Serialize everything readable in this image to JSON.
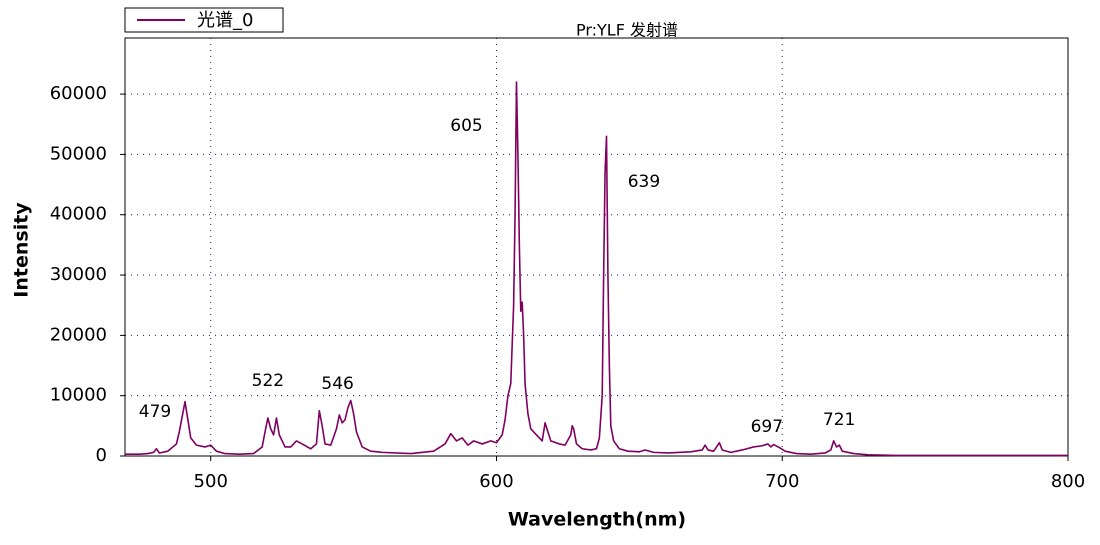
{
  "chart_data": {
    "type": "line",
    "title": "Pr:YLF 发射谱",
    "xlabel": "Wavelength(nm)",
    "ylabel": "Intensity",
    "x": [
      470,
      475,
      478,
      480,
      481,
      482,
      485,
      488,
      489,
      490,
      491,
      492,
      493,
      495,
      498,
      500,
      502,
      505,
      510,
      515,
      518,
      519,
      520,
      521,
      522,
      523,
      524,
      526,
      528,
      530,
      532,
      535,
      537,
      538,
      539,
      540,
      542,
      544,
      545,
      546,
      547,
      548,
      549,
      550,
      551,
      553,
      556,
      560,
      570,
      578,
      582,
      584,
      586,
      588,
      590,
      592,
      595,
      598,
      600,
      602,
      603,
      604,
      605,
      606,
      606.5,
      607,
      607.5,
      608,
      608.5,
      609,
      609.5,
      610,
      611,
      612,
      614,
      616,
      617,
      618,
      619,
      622,
      624,
      626,
      626.5,
      627,
      628,
      630,
      633,
      635,
      636,
      637,
      637.5,
      638,
      638.5,
      639,
      639.5,
      640,
      641,
      643,
      646,
      650,
      652,
      655,
      660,
      668,
      672,
      673,
      674,
      676,
      677,
      678,
      679,
      682,
      686,
      690,
      693,
      695,
      696,
      697,
      699,
      701,
      705,
      710,
      715,
      717,
      718,
      719,
      720,
      721,
      725,
      730,
      740,
      760,
      780,
      800
    ],
    "series": [
      {
        "name": "光谱_0",
        "color": "#800060",
        "values": [
          300,
          300,
          400,
          600,
          1200,
          500,
          800,
          2000,
          4000,
          6500,
          9000,
          6000,
          3000,
          1800,
          1500,
          1800,
          800,
          400,
          300,
          400,
          1500,
          4000,
          6300,
          4500,
          3500,
          6300,
          3500,
          1500,
          1500,
          2500,
          2000,
          1200,
          2000,
          7500,
          5000,
          2000,
          1800,
          4500,
          6800,
          5500,
          6000,
          8000,
          9200,
          7000,
          4000,
          1500,
          800,
          600,
          400,
          800,
          2000,
          3700,
          2500,
          3000,
          1800,
          2500,
          2000,
          2500,
          2200,
          3500,
          6000,
          10000,
          12000,
          25000,
          40000,
          62000,
          50000,
          35000,
          24000,
          25500,
          20000,
          12000,
          7000,
          4500,
          3500,
          2500,
          5500,
          4000,
          2500,
          2000,
          1800,
          3500,
          5000,
          4500,
          2000,
          1200,
          1000,
          1200,
          3000,
          10000,
          30000,
          47000,
          53000,
          30000,
          15000,
          5000,
          2500,
          1200,
          800,
          700,
          1000,
          600,
          500,
          700,
          1000,
          1800,
          1000,
          800,
          1500,
          2200,
          1000,
          600,
          1000,
          1500,
          1700,
          2000,
          1500,
          1900,
          1400,
          800,
          400,
          300,
          500,
          1000,
          2500,
          1500,
          1800,
          800,
          400,
          200,
          100,
          100,
          100,
          100
        ]
      }
    ],
    "xlim": [
      470,
      800
    ],
    "ylim": [
      0,
      69300
    ],
    "xticks": [
      500,
      600,
      700,
      800
    ],
    "yticks": [
      0,
      10000,
      20000,
      30000,
      40000,
      50000,
      60000
    ],
    "grid": true,
    "legend": "top-left",
    "annotations": [
      {
        "text": "479",
        "x": 480.5,
        "y": 7300
      },
      {
        "text": "522",
        "x": 520,
        "y": 12400
      },
      {
        "text": "546",
        "x": 544.4,
        "y": 11900
      },
      {
        "text": "605",
        "x": 589.5,
        "y": 54700
      },
      {
        "text": "639",
        "x": 651.6,
        "y": 45400
      },
      {
        "text": "697",
        "x": 694.6,
        "y": 4800
      },
      {
        "text": "721",
        "x": 719.9,
        "y": 6000
      }
    ]
  }
}
